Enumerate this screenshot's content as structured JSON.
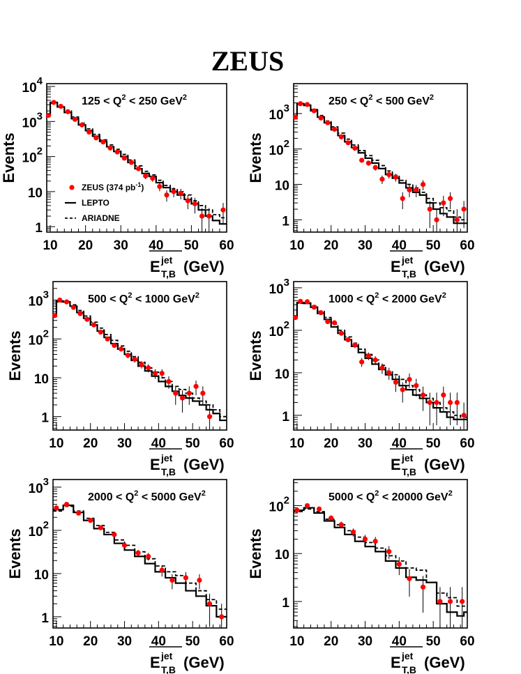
{
  "title": "ZEUS",
  "y_axis_label": "Events",
  "x_axis_label": {
    "main": "E",
    "sup": "jet",
    "sub": "T,B",
    "unit": " (GeV)"
  },
  "legend": {
    "data": {
      "name": "ZEUS",
      "detail_pre": " (374 pb",
      "detail_exp": "-1",
      "detail_post": ")"
    },
    "lepto": "LEPTO",
    "ariadne": "ARIADNE"
  },
  "colors": {
    "data": "#ff0000",
    "lepto": "#000000",
    "ariadne": "#000000"
  },
  "chart_data": [
    {
      "type": "line",
      "label": {
        "pre": "125 < Q",
        "exp": "2",
        "mid": " < 250 GeV",
        "exp2": "2"
      },
      "xlim": [
        9,
        60
      ],
      "ylim": [
        0.7,
        12000
      ],
      "yscale": "log",
      "xticks": [
        10,
        20,
        30,
        40,
        50,
        60
      ],
      "yticks": [
        {
          "v": 1,
          "t": "1"
        },
        {
          "v": 10,
          "t": "10"
        },
        {
          "v": 100,
          "t": "10",
          "e": "2"
        },
        {
          "v": 1000,
          "t": "10",
          "e": "3"
        },
        {
          "v": 10000,
          "t": "10",
          "e": "4"
        }
      ],
      "bins": [
        9,
        10,
        12,
        14,
        16,
        18,
        20,
        22,
        24,
        26,
        28,
        30,
        32,
        34,
        36,
        38,
        40,
        42,
        44,
        46,
        48,
        50,
        52,
        54,
        56,
        58,
        60
      ],
      "lepto": [
        1500,
        3500,
        2600,
        1800,
        1200,
        800,
        550,
        380,
        270,
        190,
        140,
        100,
        68,
        45,
        33,
        27,
        18,
        13,
        10,
        8,
        6,
        4.5,
        3,
        2,
        1.5,
        1.2
      ],
      "ariadne": [
        1450,
        3300,
        2700,
        2000,
        1350,
        900,
        620,
        430,
        300,
        215,
        160,
        115,
        80,
        54,
        38,
        30,
        21,
        15,
        12,
        10,
        8,
        5.5,
        4,
        3,
        2.2,
        1.8
      ],
      "data": [
        {
          "x": 9.5,
          "y": 1500
        },
        {
          "x": 11,
          "y": 3500
        },
        {
          "x": 13,
          "y": 2700
        },
        {
          "x": 15,
          "y": 1900
        },
        {
          "x": 17,
          "y": 1150
        },
        {
          "x": 19,
          "y": 800
        },
        {
          "x": 21,
          "y": 500
        },
        {
          "x": 23,
          "y": 340
        },
        {
          "x": 25,
          "y": 260
        },
        {
          "x": 27,
          "y": 175
        },
        {
          "x": 29,
          "y": 135
        },
        {
          "x": 31,
          "y": 90
        },
        {
          "x": 33,
          "y": 68
        },
        {
          "x": 35,
          "y": 45
        },
        {
          "x": 37,
          "y": 28
        },
        {
          "x": 39,
          "y": 24
        },
        {
          "x": 41,
          "y": 14
        },
        {
          "x": 43,
          "y": 8
        },
        {
          "x": 45,
          "y": 10
        },
        {
          "x": 47,
          "y": 9
        },
        {
          "x": 49,
          "y": 5.5
        },
        {
          "x": 51,
          "y": 4.5
        },
        {
          "x": 53,
          "y": 2
        },
        {
          "x": 55,
          "y": 2
        },
        {
          "x": 59,
          "y": 3
        }
      ],
      "legend_shown": true
    },
    {
      "type": "line",
      "label": {
        "pre": "250 < Q",
        "exp": "2",
        "mid": " < 500 GeV",
        "exp2": "2"
      },
      "xlim": [
        9,
        60
      ],
      "ylim": [
        0.45,
        7000
      ],
      "yscale": "log",
      "xticks": [
        10,
        20,
        30,
        40,
        50,
        60
      ],
      "yticks": [
        {
          "v": 1,
          "t": "1"
        },
        {
          "v": 10,
          "t": "10"
        },
        {
          "v": 100,
          "t": "10",
          "e": "2"
        },
        {
          "v": 1000,
          "t": "10",
          "e": "3"
        }
      ],
      "bins": [
        9,
        10,
        12,
        14,
        16,
        18,
        20,
        22,
        24,
        26,
        28,
        30,
        32,
        34,
        36,
        38,
        40,
        42,
        44,
        46,
        48,
        50,
        52,
        54,
        56,
        58,
        60
      ],
      "lepto": [
        800,
        1900,
        1700,
        1200,
        800,
        550,
        350,
        240,
        160,
        110,
        78,
        55,
        40,
        28,
        19,
        15,
        11,
        8,
        6,
        5,
        3,
        2,
        1.5,
        1.2,
        0.8,
        0.8
      ],
      "ariadne": [
        780,
        1800,
        1750,
        1300,
        880,
        620,
        420,
        280,
        190,
        130,
        90,
        65,
        48,
        34,
        24,
        18,
        13,
        10,
        8,
        6,
        4,
        3,
        2.2,
        1.8,
        1.2,
        1.0
      ],
      "data": [
        {
          "x": 9.5,
          "y": 800
        },
        {
          "x": 11,
          "y": 1900
        },
        {
          "x": 13,
          "y": 1800
        },
        {
          "x": 15,
          "y": 1200
        },
        {
          "x": 17,
          "y": 750
        },
        {
          "x": 19,
          "y": 550
        },
        {
          "x": 21,
          "y": 360
        },
        {
          "x": 23,
          "y": 220
        },
        {
          "x": 25,
          "y": 150
        },
        {
          "x": 27,
          "y": 105
        },
        {
          "x": 29,
          "y": 48
        },
        {
          "x": 31,
          "y": 40
        },
        {
          "x": 33,
          "y": 30
        },
        {
          "x": 35,
          "y": 14
        },
        {
          "x": 37,
          "y": 19
        },
        {
          "x": 39,
          "y": 16
        },
        {
          "x": 41,
          "y": 4
        },
        {
          "x": 43,
          "y": 7
        },
        {
          "x": 45,
          "y": 7
        },
        {
          "x": 47,
          "y": 10
        },
        {
          "x": 49,
          "y": 2
        },
        {
          "x": 51,
          "y": 1
        },
        {
          "x": 53,
          "y": 3
        },
        {
          "x": 55,
          "y": 4
        },
        {
          "x": 57,
          "y": 1
        },
        {
          "x": 59,
          "y": 2
        }
      ],
      "legend_shown": false
    },
    {
      "type": "line",
      "label": {
        "pre": "500 < Q",
        "exp": "2",
        "mid": " < 1000 GeV",
        "exp2": "2"
      },
      "xlim": [
        9,
        60
      ],
      "ylim": [
        0.45,
        3000
      ],
      "yscale": "log",
      "xticks": [
        10,
        20,
        30,
        40,
        50,
        60
      ],
      "yticks": [
        {
          "v": 1,
          "t": "1"
        },
        {
          "v": 10,
          "t": "10"
        },
        {
          "v": 100,
          "t": "10",
          "e": "2"
        },
        {
          "v": 1000,
          "t": "10",
          "e": "3"
        }
      ],
      "bins": [
        9,
        10,
        12,
        14,
        16,
        18,
        20,
        22,
        24,
        26,
        28,
        30,
        32,
        34,
        36,
        38,
        40,
        42,
        44,
        46,
        48,
        50,
        52,
        54,
        56,
        58,
        60
      ],
      "lepto": [
        400,
        950,
        900,
        700,
        480,
        340,
        230,
        160,
        110,
        76,
        55,
        40,
        28,
        20,
        15,
        11,
        8,
        6,
        4.5,
        3.5,
        3,
        2.5,
        2,
        1.5,
        1.2,
        0.8
      ],
      "ariadne": [
        380,
        900,
        950,
        760,
        540,
        390,
        270,
        190,
        130,
        92,
        66,
        48,
        35,
        25,
        18,
        14,
        10,
        8,
        6,
        5,
        4,
        3,
        2.5,
        2,
        1.5,
        1.0
      ],
      "data": [
        {
          "x": 9.5,
          "y": 400
        },
        {
          "x": 11,
          "y": 1000
        },
        {
          "x": 13,
          "y": 900
        },
        {
          "x": 15,
          "y": 650
        },
        {
          "x": 17,
          "y": 450
        },
        {
          "x": 19,
          "y": 320
        },
        {
          "x": 21,
          "y": 230
        },
        {
          "x": 23,
          "y": 150
        },
        {
          "x": 25,
          "y": 100
        },
        {
          "x": 27,
          "y": 68
        },
        {
          "x": 29,
          "y": 55
        },
        {
          "x": 31,
          "y": 38
        },
        {
          "x": 33,
          "y": 30
        },
        {
          "x": 35,
          "y": 22
        },
        {
          "x": 37,
          "y": 18
        },
        {
          "x": 39,
          "y": 13
        },
        {
          "x": 41,
          "y": 13
        },
        {
          "x": 43,
          "y": 8
        },
        {
          "x": 45,
          "y": 4
        },
        {
          "x": 47,
          "y": 3
        },
        {
          "x": 49,
          "y": 4
        },
        {
          "x": 51,
          "y": 6
        },
        {
          "x": 53,
          "y": 4
        },
        {
          "x": 55,
          "y": 1
        }
      ],
      "legend_shown": false
    },
    {
      "type": "line",
      "label": {
        "pre": "1000 < Q",
        "exp": "2",
        "mid": " < 2000 GeV",
        "exp2": "2"
      },
      "xlim": [
        9,
        60
      ],
      "ylim": [
        0.45,
        1400
      ],
      "yscale": "log",
      "xticks": [
        10,
        20,
        30,
        40,
        50,
        60
      ],
      "yticks": [
        {
          "v": 1,
          "t": "1"
        },
        {
          "v": 10,
          "t": "10"
        },
        {
          "v": 100,
          "t": "10",
          "e": "2"
        },
        {
          "v": 1000,
          "t": "10",
          "e": "3"
        }
      ],
      "bins": [
        9,
        10,
        12,
        14,
        16,
        18,
        20,
        22,
        24,
        26,
        28,
        30,
        32,
        34,
        36,
        38,
        40,
        42,
        44,
        46,
        48,
        50,
        52,
        54,
        56,
        58,
        60
      ],
      "lepto": [
        200,
        450,
        430,
        350,
        250,
        180,
        120,
        85,
        60,
        42,
        30,
        22,
        16,
        12,
        9,
        7,
        5,
        4,
        3,
        2.5,
        2,
        1.5,
        1.2,
        0.9,
        0.8,
        0.8
      ],
      "ariadne": [
        190,
        430,
        460,
        380,
        280,
        200,
        140,
        100,
        70,
        50,
        36,
        27,
        20,
        15,
        11,
        9,
        7,
        5,
        4,
        3,
        2.5,
        2,
        1.5,
        1.2,
        1.0,
        0.9
      ],
      "data": [
        {
          "x": 9.5,
          "y": 200
        },
        {
          "x": 11,
          "y": 480
        },
        {
          "x": 13,
          "y": 470
        },
        {
          "x": 15,
          "y": 350
        },
        {
          "x": 17,
          "y": 260
        },
        {
          "x": 19,
          "y": 160
        },
        {
          "x": 21,
          "y": 150
        },
        {
          "x": 23,
          "y": 85
        },
        {
          "x": 25,
          "y": 60
        },
        {
          "x": 27,
          "y": 45
        },
        {
          "x": 29,
          "y": 18
        },
        {
          "x": 31,
          "y": 25
        },
        {
          "x": 33,
          "y": 20
        },
        {
          "x": 35,
          "y": 13
        },
        {
          "x": 37,
          "y": 10
        },
        {
          "x": 39,
          "y": 6
        },
        {
          "x": 41,
          "y": 4
        },
        {
          "x": 43,
          "y": 7
        },
        {
          "x": 45,
          "y": 5
        },
        {
          "x": 47,
          "y": 3
        },
        {
          "x": 49,
          "y": 2
        },
        {
          "x": 51,
          "y": 2
        },
        {
          "x": 53,
          "y": 3
        },
        {
          "x": 55,
          "y": 2
        },
        {
          "x": 57,
          "y": 2
        },
        {
          "x": 59,
          "y": 1
        }
      ],
      "legend_shown": false
    },
    {
      "type": "line",
      "label": {
        "pre": "2000 < Q",
        "exp": "2",
        "mid": " < 5000 GeV",
        "exp2": "2"
      },
      "xlim": [
        9,
        60
      ],
      "ylim": [
        0.55,
        1500
      ],
      "yscale": "log",
      "xticks": [
        10,
        20,
        30,
        40,
        50,
        60
      ],
      "yticks": [
        {
          "v": 1,
          "t": "1"
        },
        {
          "v": 10,
          "t": "10"
        },
        {
          "v": 100,
          "t": "10",
          "e": "2"
        },
        {
          "v": 1000,
          "t": "10",
          "e": "3"
        }
      ],
      "bins": [
        9,
        12,
        15,
        18,
        21,
        24,
        27,
        30,
        33,
        36,
        39,
        42,
        45,
        48,
        51,
        54,
        57,
        60
      ],
      "lepto": [
        300,
        380,
        260,
        170,
        110,
        80,
        50,
        35,
        25,
        17,
        11,
        8,
        6,
        4,
        3,
        1.8,
        1.0
      ],
      "ariadne": [
        280,
        360,
        280,
        190,
        130,
        90,
        60,
        45,
        32,
        22,
        15,
        11,
        9,
        6,
        4,
        2.5,
        1.5
      ],
      "data": [
        {
          "x": 10,
          "y": 330
        },
        {
          "x": 13,
          "y": 400
        },
        {
          "x": 16.5,
          "y": 250
        },
        {
          "x": 20,
          "y": 170
        },
        {
          "x": 23,
          "y": 115
        },
        {
          "x": 27,
          "y": 80
        },
        {
          "x": 30,
          "y": 45
        },
        {
          "x": 34,
          "y": 30
        },
        {
          "x": 37,
          "y": 25
        },
        {
          "x": 41,
          "y": 12
        },
        {
          "x": 44,
          "y": 7
        },
        {
          "x": 48,
          "y": 8
        },
        {
          "x": 52,
          "y": 7
        },
        {
          "x": 55,
          "y": 2
        },
        {
          "x": 58.5,
          "y": 1
        }
      ],
      "legend_shown": false
    },
    {
      "type": "line",
      "label": {
        "pre": "5000 < Q",
        "exp": "2",
        "mid": " < 20000 GeV",
        "exp2": "2"
      },
      "xlim": [
        9,
        60
      ],
      "ylim": [
        0.28,
        350
      ],
      "yscale": "log",
      "xticks": [
        10,
        20,
        30,
        40,
        50,
        60
      ],
      "yticks": [
        {
          "v": 1,
          "t": "1"
        },
        {
          "v": 10,
          "t": "10"
        },
        {
          "v": 100,
          "t": "10",
          "e": "2"
        }
      ],
      "bins": [
        9,
        12,
        15,
        18,
        21,
        24,
        27,
        30,
        33,
        36,
        39,
        42,
        45,
        48,
        51,
        54,
        57,
        59,
        60
      ],
      "lepto": [
        80,
        90,
        70,
        48,
        35,
        25,
        18,
        14,
        11,
        7,
        5,
        3.2,
        2.8,
        2.5,
        0.9,
        0.6,
        0.5,
        0.6
      ],
      "ariadne": [
        75,
        85,
        75,
        52,
        40,
        30,
        22,
        17,
        13,
        9,
        7,
        5,
        4.5,
        2.5,
        1.5,
        1.2,
        0.8,
        0.8
      ],
      "data": [
        {
          "x": 10,
          "y": 80
        },
        {
          "x": 13,
          "y": 100
        },
        {
          "x": 16.5,
          "y": 85
        },
        {
          "x": 20,
          "y": 55
        },
        {
          "x": 23,
          "y": 40
        },
        {
          "x": 26.5,
          "y": 28
        },
        {
          "x": 30,
          "y": 20
        },
        {
          "x": 33,
          "y": 18
        },
        {
          "x": 37,
          "y": 11
        },
        {
          "x": 40,
          "y": 6
        },
        {
          "x": 43,
          "y": 3
        },
        {
          "x": 47,
          "y": 2
        },
        {
          "x": 52,
          "y": 1
        },
        {
          "x": 55,
          "y": 1
        },
        {
          "x": 58.5,
          "y": 1
        }
      ],
      "legend_shown": false
    }
  ]
}
